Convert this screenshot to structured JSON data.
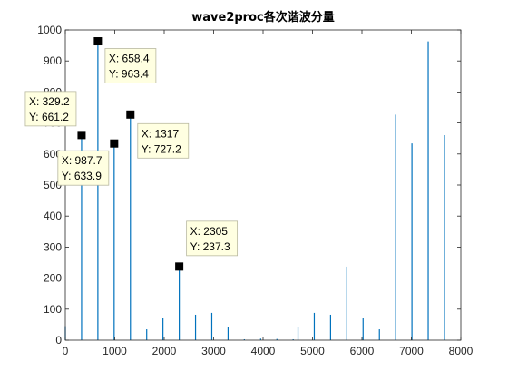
{
  "chart_data": {
    "type": "line",
    "title": "wave2proc各次谐波分量",
    "xlabel": "",
    "ylabel": "",
    "xlim": [
      0,
      8000
    ],
    "ylim": [
      0,
      1000
    ],
    "xticks": [
      0,
      1000,
      2000,
      3000,
      4000,
      5000,
      6000,
      7000,
      8000
    ],
    "yticks": [
      0,
      100,
      200,
      300,
      400,
      500,
      600,
      700,
      800,
      900,
      1000
    ],
    "grid": false,
    "box": true,
    "colors": {
      "stem": "#0072bd",
      "axis": "#262626",
      "tip_bg": "#ffffe1",
      "tip_border": "#b8b8a0",
      "marker": "#000000"
    },
    "series": [
      {
        "x": [
          0,
          329.2,
          658.4,
          987.7,
          1317,
          1646,
          1975,
          2305,
          2634,
          2963,
          3292,
          3621,
          3951,
          4280,
          4609,
          4707,
          5036,
          5365,
          5694,
          6023,
          6353,
          6682,
          7011,
          7340,
          7669
        ],
        "y": [
          45,
          661.2,
          963.4,
          633.9,
          727.2,
          35,
          72,
          237.3,
          82,
          88,
          42,
          3,
          5,
          4,
          3,
          42,
          88,
          82,
          237,
          72,
          35,
          727,
          634,
          963,
          661
        ]
      }
    ],
    "datatips": [
      {
        "x": 658.4,
        "y": 963.4,
        "x_label": "X: 658.4",
        "y_label": "Y: 963.4"
      },
      {
        "x": 329.2,
        "y": 661.2,
        "x_label": "X: 329.2",
        "y_label": "Y: 661.2"
      },
      {
        "x": 1317,
        "y": 727.2,
        "x_label": "X: 1317",
        "y_label": "Y: 727.2"
      },
      {
        "x": 987.7,
        "y": 633.9,
        "x_label": "X: 987.7",
        "y_label": "Y: 633.9"
      },
      {
        "x": 2305,
        "y": 237.3,
        "x_label": "X: 2305",
        "y_label": "Y: 237.3"
      }
    ]
  }
}
